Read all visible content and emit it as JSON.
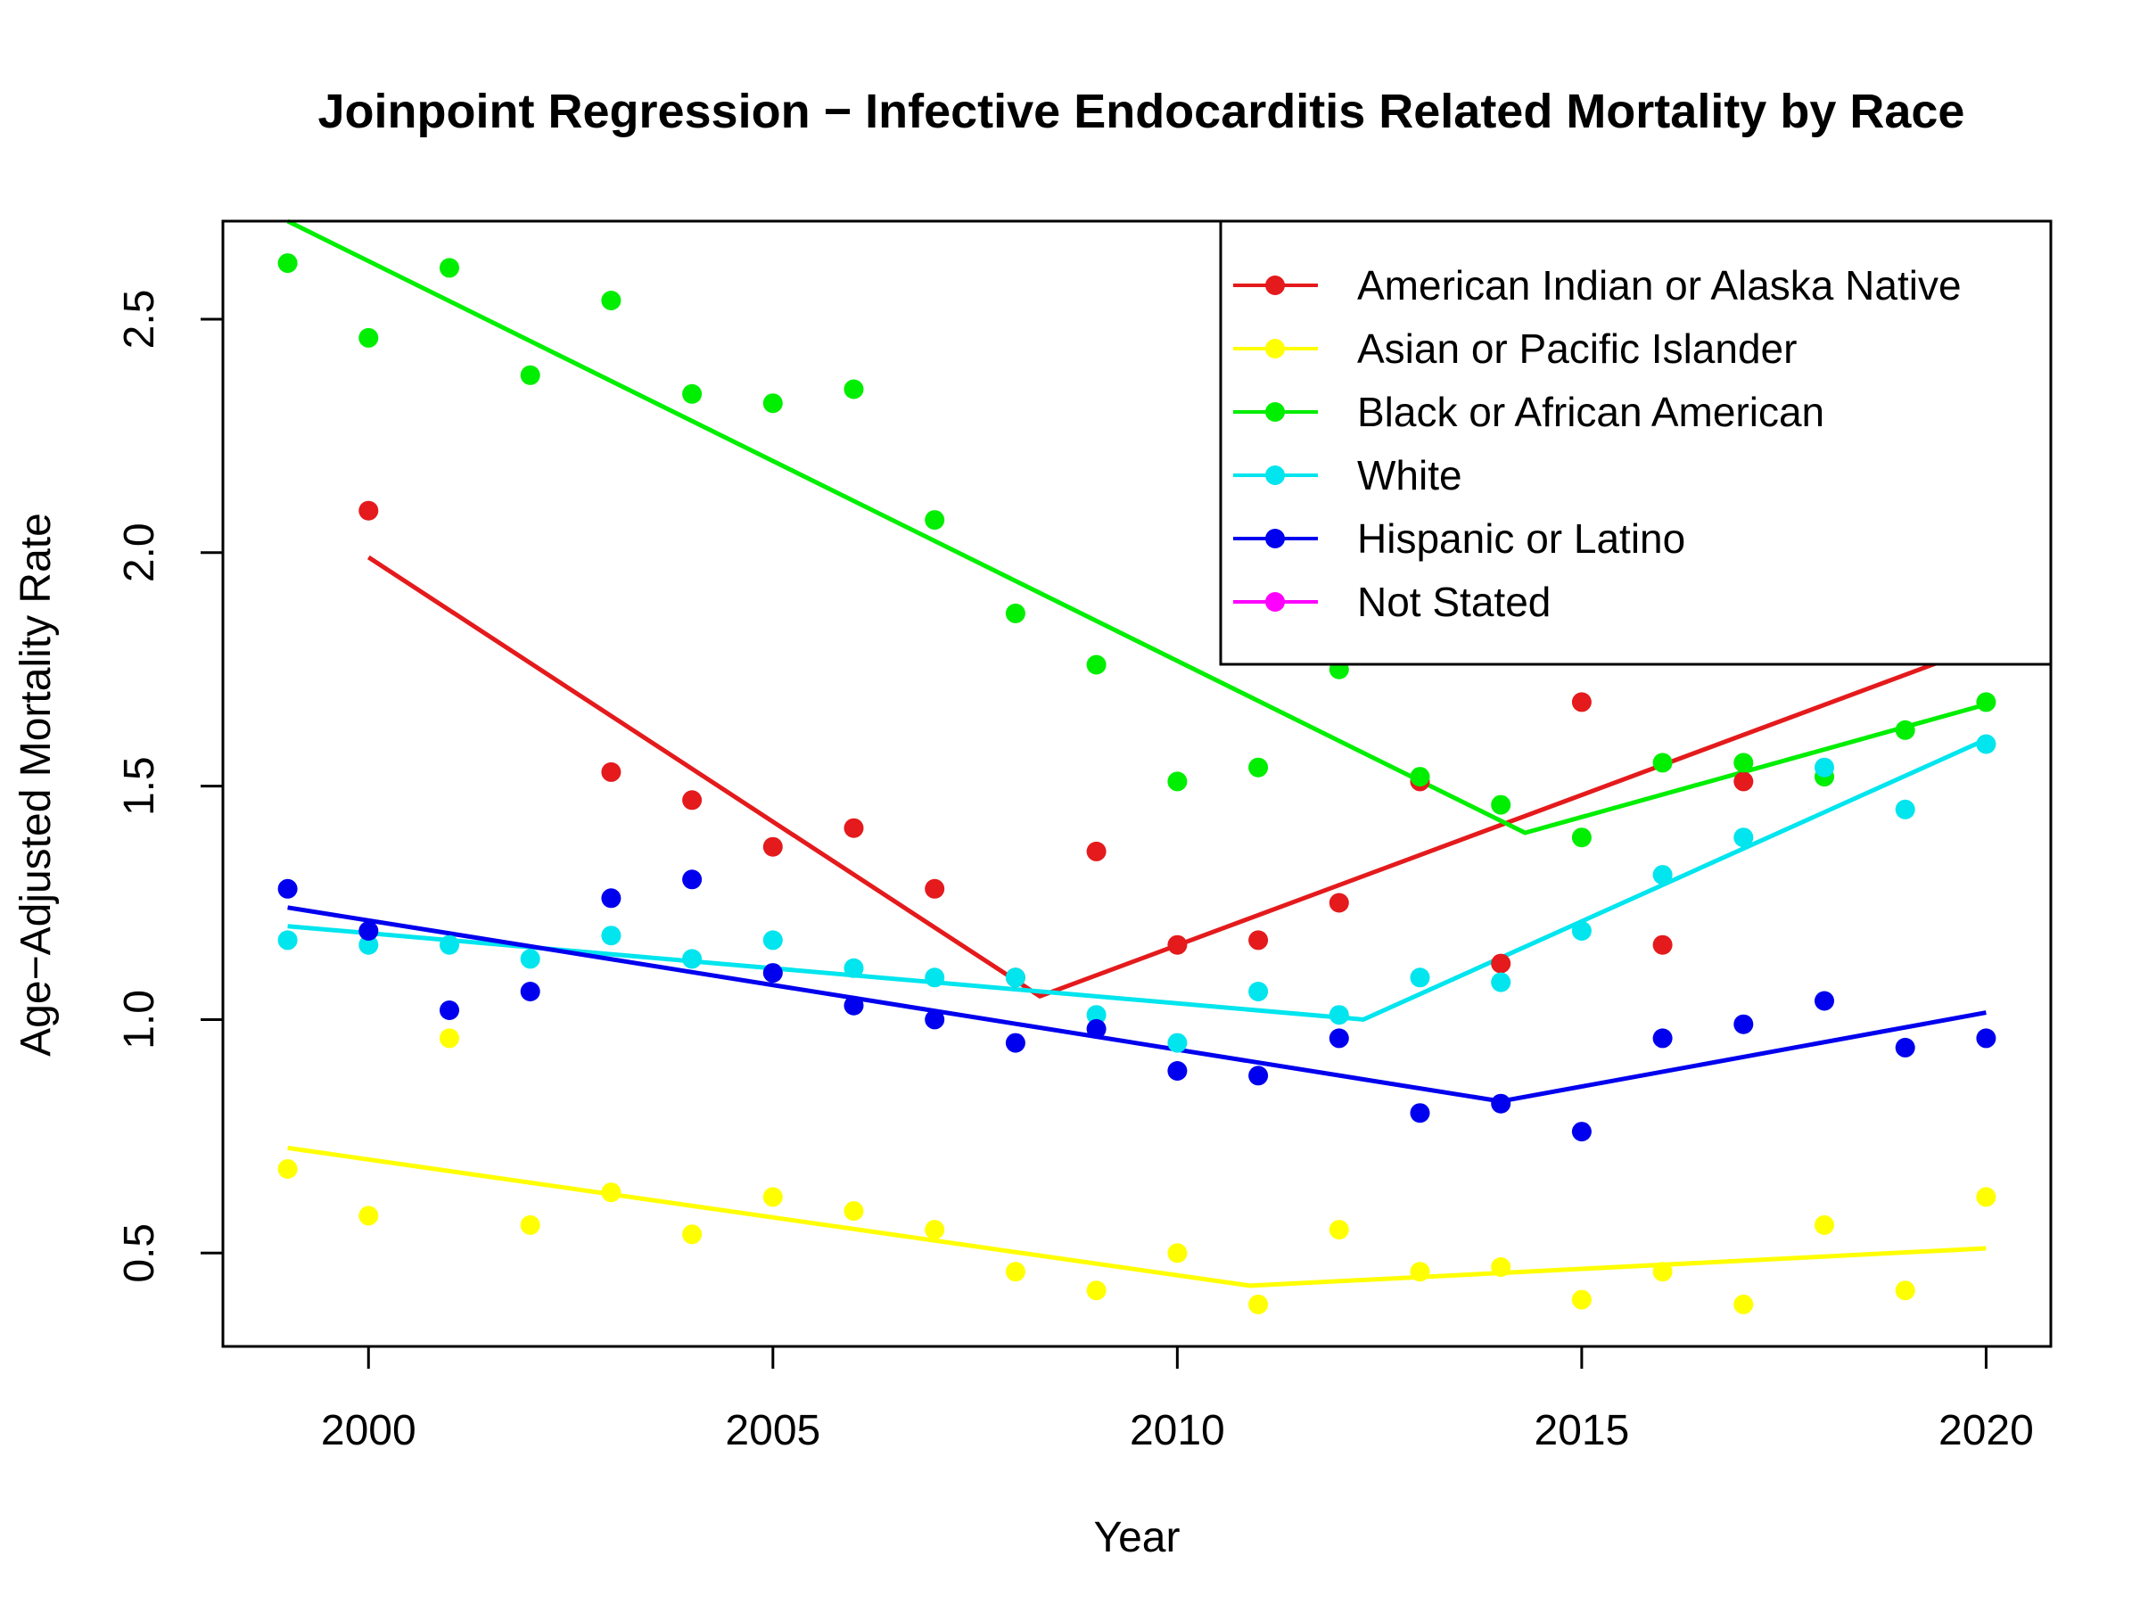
{
  "chart_data": {
    "type": "scatter",
    "title": "Joinpoint Regression − Infective Endocarditis Related Mortality by Race",
    "xlabel": "Year",
    "ylabel": "Age−Adjusted Mortality Rate",
    "xlim": [
      1998.2,
      2020.8
    ],
    "ylim": [
      0.3,
      2.71
    ],
    "x_ticks": [
      2000,
      2005,
      2010,
      2015,
      2020
    ],
    "y_ticks": [
      0.5,
      1.0,
      1.5,
      2.0,
      2.5
    ],
    "x_tick_labels": [
      "2000",
      "2005",
      "2010",
      "2015",
      "2020"
    ],
    "y_tick_labels": [
      "0.5",
      "1.0",
      "1.5",
      "2.0",
      "2.5"
    ],
    "grid": false,
    "legend_position": "top-right",
    "series": [
      {
        "name": "American Indian or Alaska Native",
        "color": "#e41a1c",
        "points": [
          [
            2000,
            2.09
          ],
          [
            2003,
            1.53
          ],
          [
            2004,
            1.47
          ],
          [
            2005,
            1.37
          ],
          [
            2006,
            1.41
          ],
          [
            2007,
            1.28
          ],
          [
            2008,
            1.09
          ],
          [
            2009,
            1.36
          ],
          [
            2010,
            1.16
          ],
          [
            2011,
            1.17
          ],
          [
            2012,
            1.25
          ],
          [
            2013,
            1.51
          ],
          [
            2014,
            1.12
          ],
          [
            2015,
            1.68
          ],
          [
            2016,
            1.16
          ],
          [
            2017,
            1.51
          ]
        ],
        "fit": [
          [
            2000,
            1.99
          ],
          [
            2008.3,
            1.05
          ],
          [
            2019.8,
            1.79
          ]
        ]
      },
      {
        "name": "Asian or Pacific Islander",
        "color": "#ffff00",
        "points": [
          [
            1999,
            0.68
          ],
          [
            2000,
            0.58
          ],
          [
            2001,
            0.96
          ],
          [
            2002,
            0.56
          ],
          [
            2003,
            0.63
          ],
          [
            2004,
            0.54
          ],
          [
            2005,
            0.62
          ],
          [
            2006,
            0.59
          ],
          [
            2007,
            0.55
          ],
          [
            2008,
            0.46
          ],
          [
            2009,
            0.42
          ],
          [
            2010,
            0.5
          ],
          [
            2011,
            0.39
          ],
          [
            2012,
            0.55
          ],
          [
            2013,
            0.46
          ],
          [
            2014,
            0.47
          ],
          [
            2015,
            0.4
          ],
          [
            2016,
            0.46
          ],
          [
            2017,
            0.39
          ],
          [
            2018,
            0.56
          ],
          [
            2019,
            0.42
          ],
          [
            2020,
            0.62
          ]
        ],
        "fit": [
          [
            1999,
            0.725
          ],
          [
            2010.9,
            0.43
          ],
          [
            2020,
            0.51
          ]
        ]
      },
      {
        "name": "Black or African American",
        "color": "#00ee00",
        "points": [
          [
            1999,
            2.62
          ],
          [
            2000,
            2.46
          ],
          [
            2001,
            2.61
          ],
          [
            2002,
            2.38
          ],
          [
            2003,
            2.54
          ],
          [
            2004,
            2.34
          ],
          [
            2005,
            2.32
          ],
          [
            2006,
            2.35
          ],
          [
            2007,
            2.07
          ],
          [
            2008,
            1.87
          ],
          [
            2009,
            1.76
          ],
          [
            2010,
            1.51
          ],
          [
            2011,
            1.54
          ],
          [
            2012,
            1.75
          ],
          [
            2013,
            1.52
          ],
          [
            2014,
            1.46
          ],
          [
            2015,
            1.39
          ],
          [
            2016,
            1.55
          ],
          [
            2017,
            1.55
          ],
          [
            2018,
            1.52
          ],
          [
            2019,
            1.62
          ],
          [
            2020,
            1.68
          ]
        ],
        "fit": [
          [
            1999,
            2.72
          ],
          [
            2014.3,
            1.4
          ],
          [
            2020,
            1.675
          ]
        ]
      },
      {
        "name": "White",
        "color": "#00e5ee",
        "points": [
          [
            1999,
            1.17
          ],
          [
            2000,
            1.16
          ],
          [
            2001,
            1.16
          ],
          [
            2002,
            1.13
          ],
          [
            2003,
            1.18
          ],
          [
            2004,
            1.13
          ],
          [
            2005,
            1.17
          ],
          [
            2006,
            1.11
          ],
          [
            2007,
            1.09
          ],
          [
            2008,
            1.09
          ],
          [
            2009,
            1.01
          ],
          [
            2010,
            0.95
          ],
          [
            2011,
            1.06
          ],
          [
            2012,
            1.01
          ],
          [
            2013,
            1.09
          ],
          [
            2014,
            1.08
          ],
          [
            2015,
            1.19
          ],
          [
            2016,
            1.31
          ],
          [
            2017,
            1.39
          ],
          [
            2018,
            1.54
          ],
          [
            2019,
            1.45
          ],
          [
            2020,
            1.59
          ]
        ],
        "fit": [
          [
            1999,
            1.2
          ],
          [
            2012.3,
            1.0
          ],
          [
            2020,
            1.6
          ]
        ]
      },
      {
        "name": "Hispanic or Latino",
        "color": "#0000ee",
        "points": [
          [
            1999,
            1.28
          ],
          [
            2000,
            1.19
          ],
          [
            2001,
            1.02
          ],
          [
            2002,
            1.06
          ],
          [
            2003,
            1.26
          ],
          [
            2004,
            1.3
          ],
          [
            2005,
            1.1
          ],
          [
            2006,
            1.03
          ],
          [
            2007,
            1.0
          ],
          [
            2008,
            0.95
          ],
          [
            2009,
            0.98
          ],
          [
            2010,
            0.89
          ],
          [
            2011,
            0.88
          ],
          [
            2012,
            0.96
          ],
          [
            2013,
            0.8
          ],
          [
            2014,
            0.82
          ],
          [
            2015,
            0.76
          ],
          [
            2016,
            0.96
          ],
          [
            2017,
            0.99
          ],
          [
            2018,
            1.04
          ],
          [
            2019,
            0.94
          ],
          [
            2020,
            0.96
          ]
        ],
        "fit": [
          [
            1999,
            1.24
          ],
          [
            2014,
            0.825
          ],
          [
            2020,
            1.015
          ]
        ]
      },
      {
        "name": "Not Stated",
        "color": "#ff00ff",
        "points": [],
        "fit": []
      }
    ]
  }
}
